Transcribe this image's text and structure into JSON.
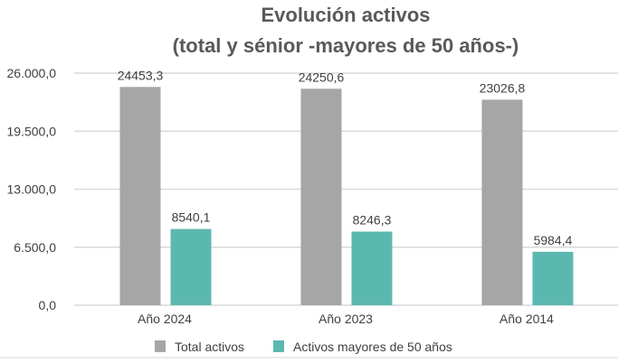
{
  "chart_data": {
    "type": "bar",
    "title": [
      "Evolución activos",
      "(total y sénior -mayores de 50 años-)"
    ],
    "categories": [
      "Año 2024",
      "Año 2023",
      "Año 2014"
    ],
    "series": [
      {
        "name": "Total activos",
        "color": "#a6a6a6",
        "values": [
          24453.3,
          24250.6,
          23026.8
        ],
        "labels": [
          "24453,3",
          "24250,6",
          "23026,8"
        ]
      },
      {
        "name": "Activos mayores de 50 años",
        "color": "#5bb8b0",
        "values": [
          8540.1,
          8246.3,
          5984.4
        ],
        "labels": [
          "8540,1",
          "8246,3",
          "5984,4"
        ]
      }
    ],
    "ylim": [
      0,
      26000
    ],
    "yticks": [
      0,
      6500,
      13000,
      19500,
      26000
    ],
    "ytick_labels": [
      "0,0",
      "6.500,0",
      "13.000,0",
      "19.500,0",
      "26.000,0"
    ],
    "grid": true,
    "legend": "bottom",
    "xlabel": "",
    "ylabel": ""
  }
}
